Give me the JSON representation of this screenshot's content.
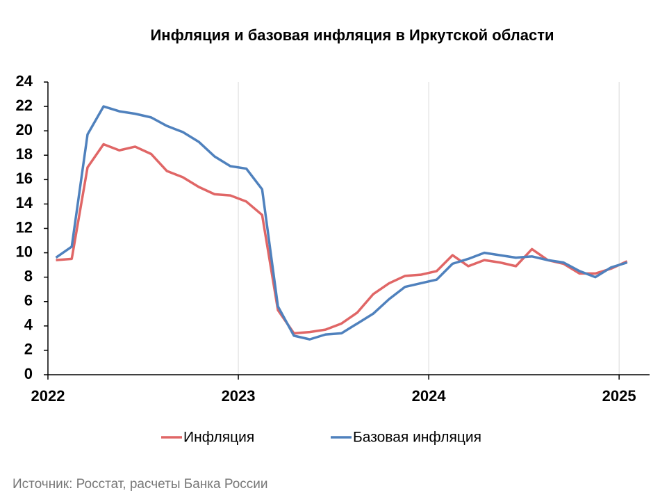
{
  "chart_data": {
    "type": "line",
    "title": "Инфляция и базовая инфляция в Иркутской области",
    "source": "Источник: Росстат, расчеты Банка России",
    "x": [
      2022.042,
      2022.125,
      2022.208,
      2022.292,
      2022.375,
      2022.458,
      2022.542,
      2022.625,
      2022.708,
      2022.792,
      2022.875,
      2022.958,
      2023.042,
      2023.125,
      2023.208,
      2023.292,
      2023.375,
      2023.458,
      2023.542,
      2023.625,
      2023.708,
      2023.792,
      2023.875,
      2023.958,
      2024.042,
      2024.125,
      2024.208,
      2024.292,
      2024.375,
      2024.458,
      2024.542,
      2024.625,
      2024.708,
      2024.792,
      2024.875,
      2024.958,
      2025.042
    ],
    "series": [
      {
        "name": "Инфляция",
        "color": "#e06666",
        "values": [
          9.4,
          9.5,
          17.0,
          18.9,
          18.4,
          18.7,
          18.1,
          16.7,
          16.2,
          15.4,
          14.8,
          14.7,
          14.2,
          13.1,
          5.3,
          3.4,
          3.5,
          3.7,
          4.2,
          5.1,
          6.6,
          7.5,
          8.1,
          8.2,
          8.5,
          9.8,
          8.9,
          9.4,
          9.2,
          8.9,
          10.3,
          9.4,
          9.1,
          8.3,
          8.3,
          8.7,
          9.3
        ]
      },
      {
        "name": "Базовая инфляция",
        "color": "#4f81bd",
        "values": [
          9.6,
          10.5,
          19.7,
          22.0,
          21.6,
          21.4,
          21.1,
          20.4,
          19.9,
          19.1,
          17.9,
          17.1,
          16.9,
          15.2,
          5.6,
          3.2,
          2.9,
          3.3,
          3.4,
          4.2,
          5.0,
          6.2,
          7.2,
          7.5,
          7.8,
          9.1,
          9.5,
          10.0,
          9.8,
          9.6,
          9.7,
          9.4,
          9.2,
          8.5,
          8.0,
          8.8,
          9.2
        ]
      }
    ],
    "xlim": [
      2022,
      2025.16
    ],
    "xticks": [
      2022,
      2023,
      2024,
      2025
    ],
    "ylim": [
      0,
      24
    ],
    "yticks": [
      0,
      2,
      4,
      6,
      8,
      10,
      12,
      14,
      16,
      18,
      20,
      22,
      24
    ],
    "grid": true,
    "legend": "bottom"
  }
}
